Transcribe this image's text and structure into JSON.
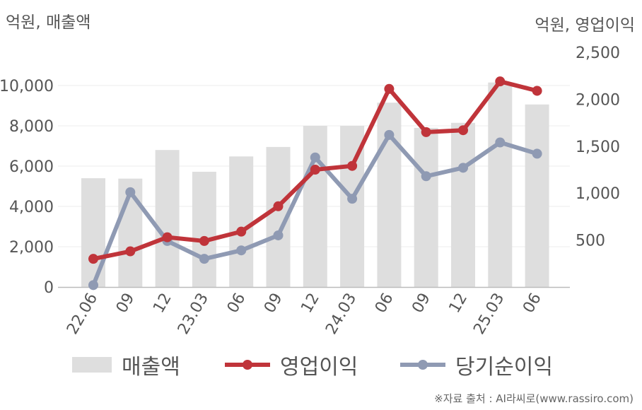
{
  "chart_data": {
    "type": "bar+line",
    "categories": [
      "22.06",
      "09",
      "12",
      "23.03",
      "06",
      "09",
      "12",
      "24.03",
      "06",
      "09",
      "12",
      "25.03",
      "06"
    ],
    "left_axis_title": "억원, 매출액",
    "right_axis_title": "억원, 영업이익",
    "left_ylim": [
      0,
      10000
    ],
    "left_ticks": [
      "0",
      "2,000",
      "4,000",
      "6,000",
      "8,000",
      "10,000"
    ],
    "right_ylim": [
      0,
      2500
    ],
    "right_ticks": [
      "500",
      "1,000",
      "1,500",
      "2,000",
      "2,500"
    ],
    "series": [
      {
        "name": "매출액",
        "type": "bar",
        "axis": "left",
        "color": "#dedede",
        "values": [
          5400,
          5380,
          6800,
          5720,
          6480,
          6950,
          8000,
          8000,
          9150,
          7900,
          8150,
          10150,
          9060
        ]
      },
      {
        "name": "영업이익",
        "type": "line",
        "axis": "right",
        "color": "#c0343a",
        "values": [
          300,
          380,
          530,
          490,
          590,
          860,
          1250,
          1290,
          2110,
          1650,
          1670,
          2190,
          2090
        ]
      },
      {
        "name": "당기순이익",
        "type": "line",
        "axis": "right",
        "color": "#8f9ab3",
        "values": [
          20,
          1010,
          490,
          300,
          390,
          550,
          1380,
          940,
          1620,
          1180,
          1270,
          1540,
          1420
        ]
      }
    ],
    "grid": true
  },
  "source_text": "※자료 출처 : AI라씨로(www.rassiro.com)"
}
